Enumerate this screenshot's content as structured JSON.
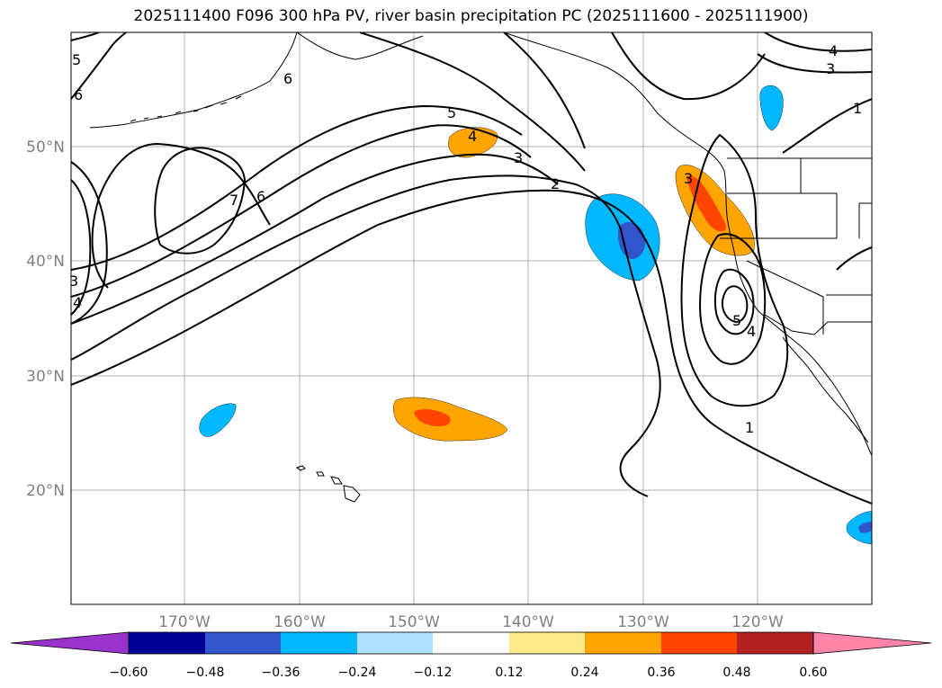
{
  "title": "2025111400 F096 300 hPa PV, river basin precipitation PC (2025111600 - 2025111900)",
  "map": {
    "lat_labels": [
      "50°N",
      "40°N",
      "30°N",
      "20°N"
    ],
    "lon_labels": [
      "170°W",
      "160°W",
      "150°W",
      "140°W",
      "130°W",
      "120°W"
    ],
    "contour_labels": [
      "5",
      "6",
      "6",
      "5",
      "4",
      "3",
      "2",
      "7",
      "6",
      "3",
      "4",
      "3",
      "5",
      "4",
      "1",
      "4",
      "3",
      "1"
    ]
  },
  "colorbar": {
    "colors": [
      "#9933cc",
      "#000099",
      "#3355cc",
      "#00b8ff",
      "#aee2ff",
      "#ffffff",
      "#ffea8a",
      "#ffa500",
      "#ff4500",
      "#b22222",
      "#ff85a8"
    ],
    "tick_labels": [
      "−0.60",
      "−0.48",
      "−0.36",
      "−0.24",
      "−0.12",
      "0.12",
      "0.24",
      "0.36",
      "0.48",
      "0.60"
    ]
  }
}
